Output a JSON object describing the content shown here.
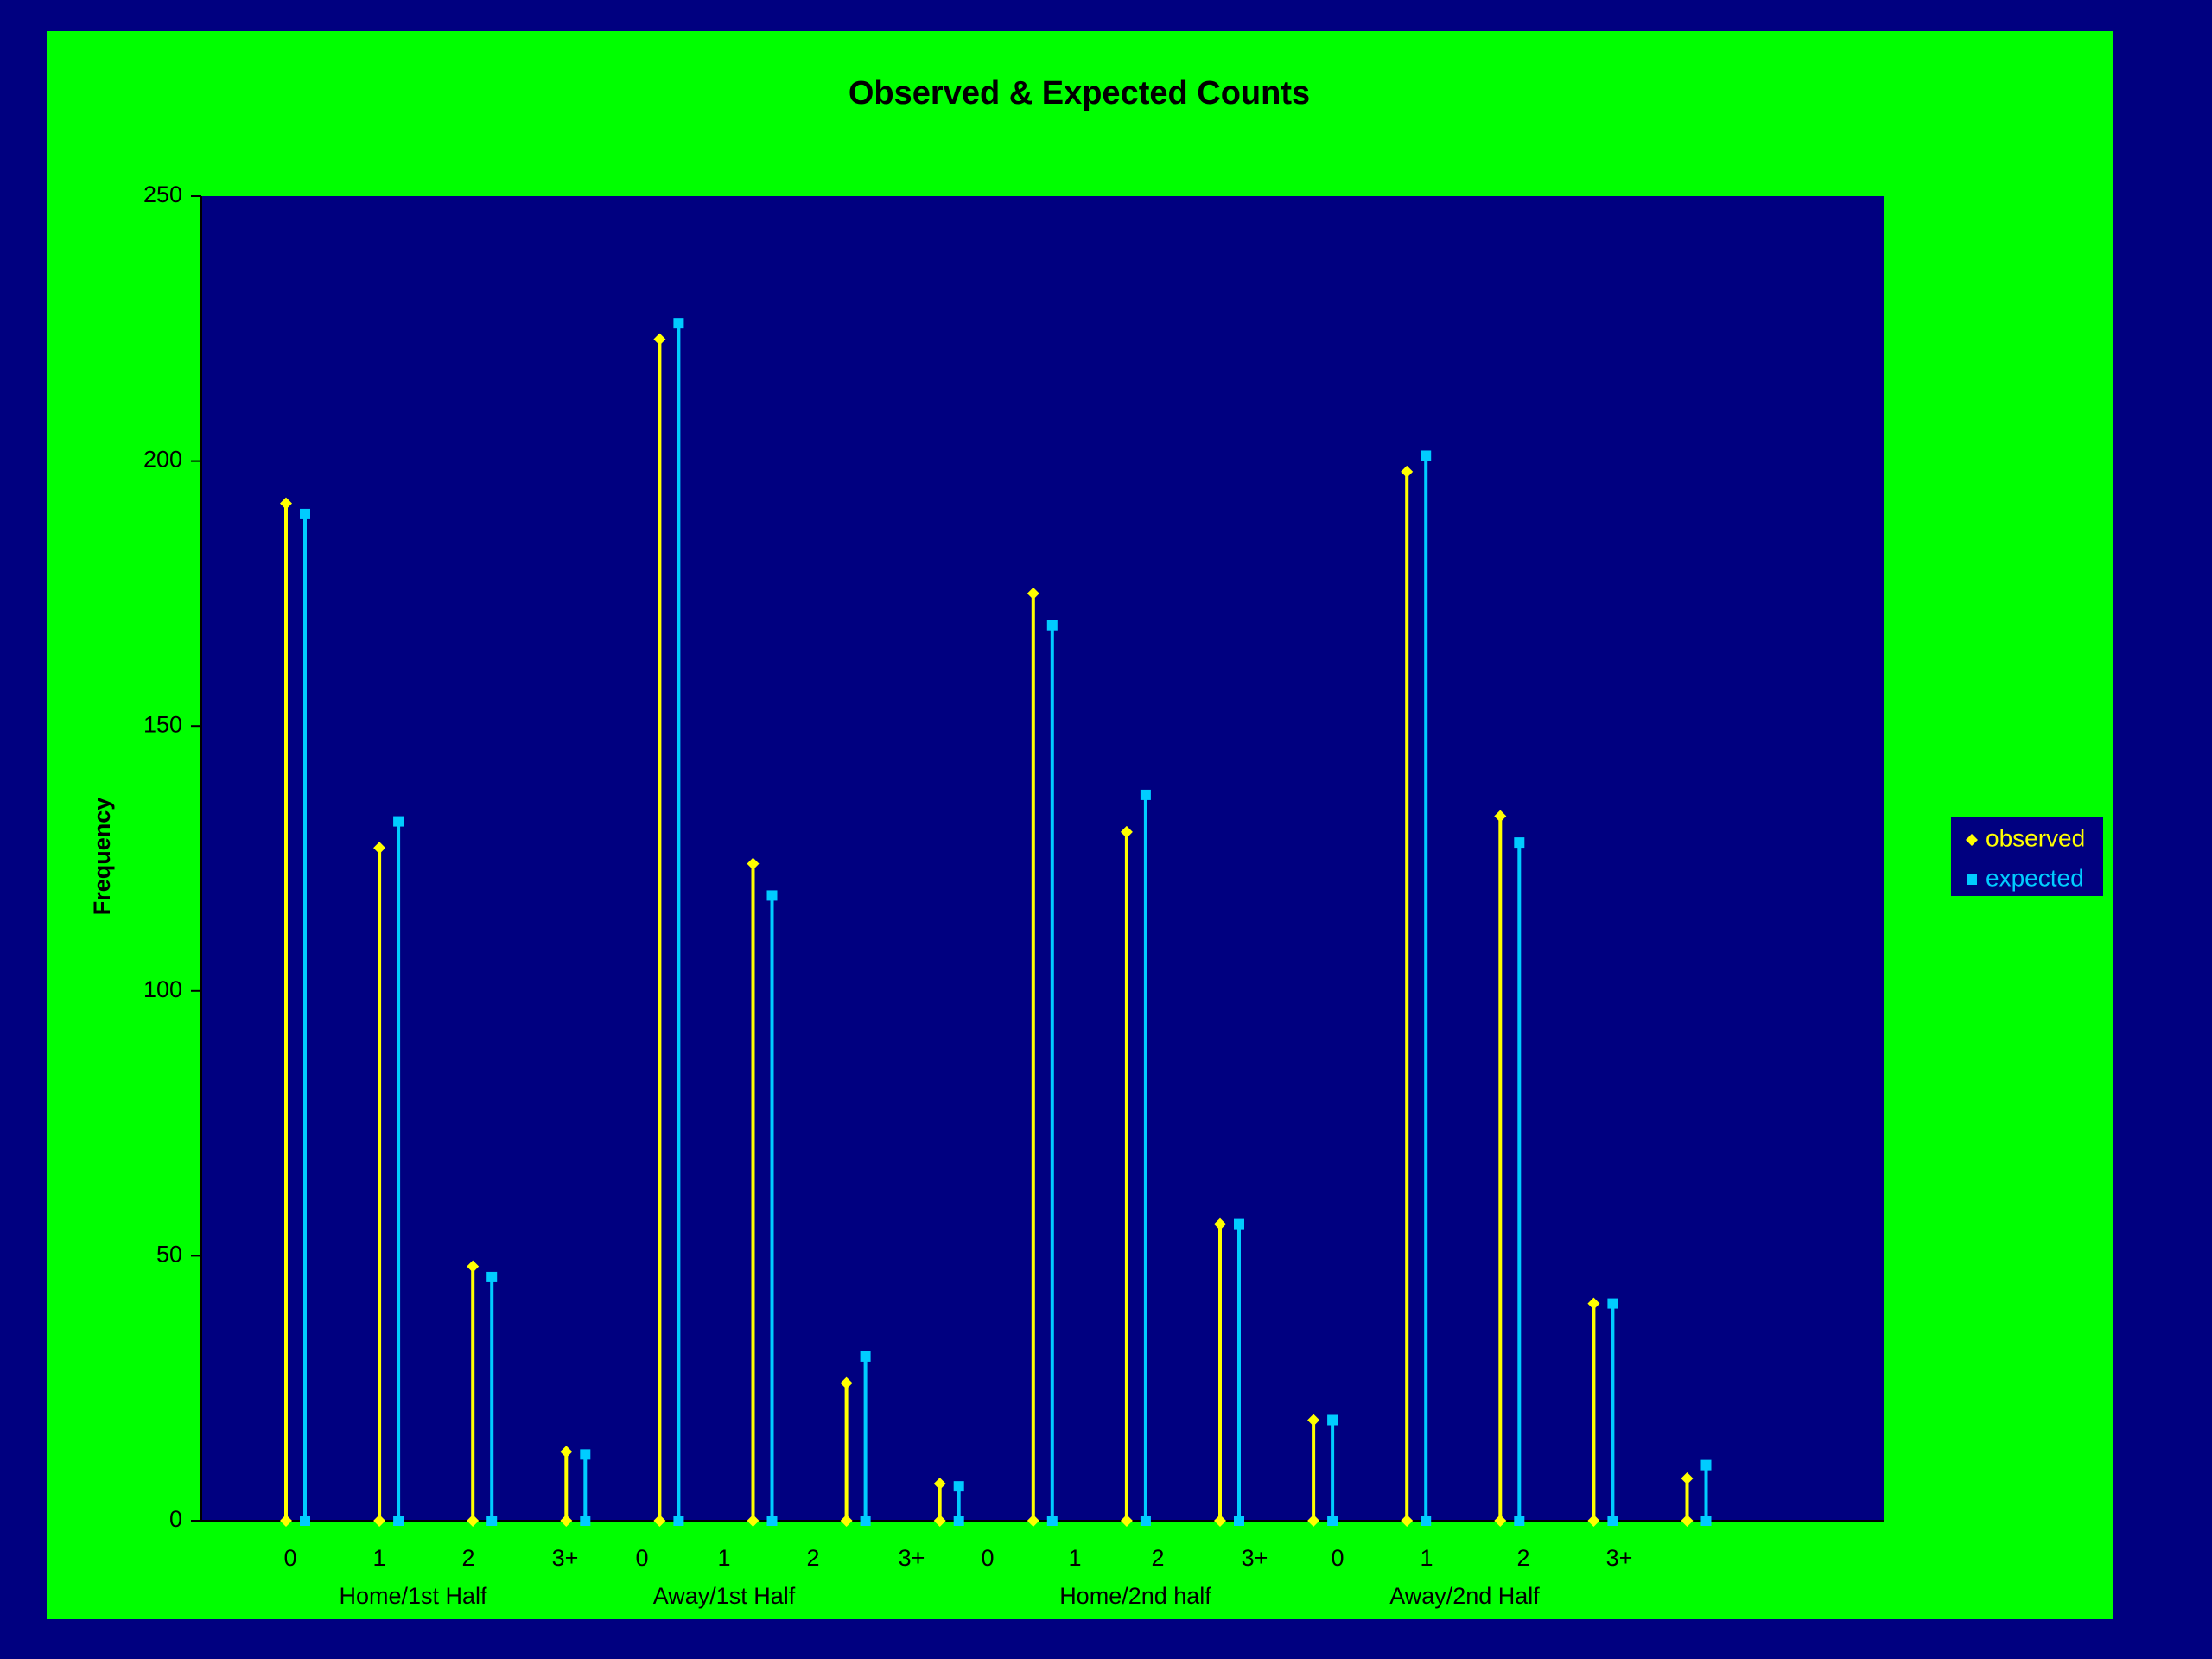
{
  "chart_data": {
    "type": "stem",
    "title": "Observed & Expected Counts",
    "y_label": "Frequency",
    "categories": [
      "0",
      "1",
      "2",
      "3+",
      "0",
      "1",
      "2",
      "3+",
      "0",
      "1",
      "2",
      "3+",
      "0",
      "1",
      "2",
      "3+"
    ],
    "groups": [
      "Home/1st Half",
      "Away/1st Half",
      "Home/2nd half",
      "Away/2nd Half"
    ],
    "series": [
      {
        "name": "observed",
        "color": "#ffff00",
        "marker": "diamond",
        "values": [
          192,
          127,
          48,
          13,
          223,
          124,
          26,
          7,
          175,
          130,
          56,
          19,
          198,
          133,
          41,
          8
        ]
      },
      {
        "name": "expected",
        "color": "#00ccff",
        "marker": "square",
        "values": [
          190,
          132,
          46,
          12.5,
          226,
          118,
          31,
          6.5,
          169,
          137,
          56,
          19,
          201,
          128,
          41,
          10.5
        ]
      }
    ],
    "ylim": [
      0,
      250
    ],
    "yticks": [
      0,
      50,
      100,
      150,
      200,
      250
    ],
    "legend": "right"
  }
}
